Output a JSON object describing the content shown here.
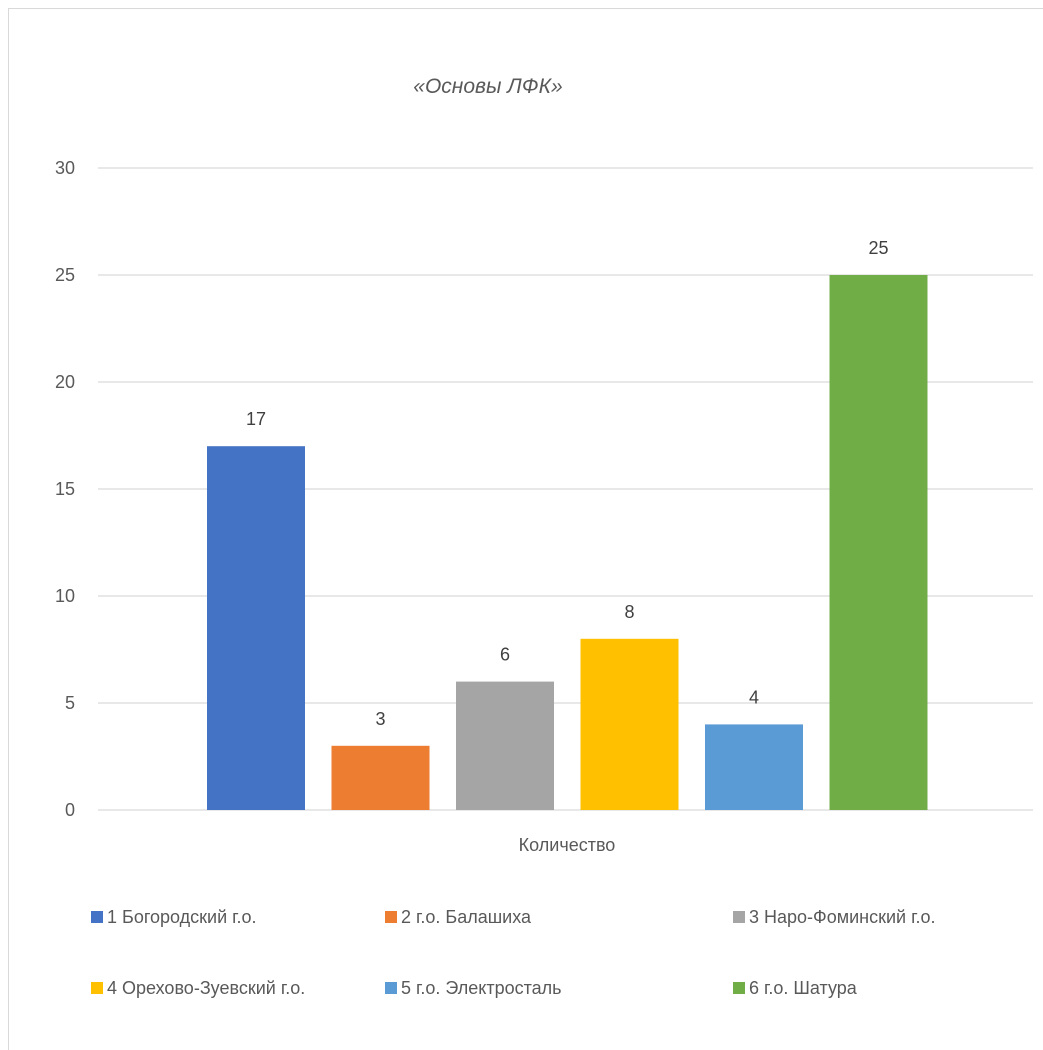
{
  "chart_data": {
    "type": "bar",
    "title": "«Основы ЛФК»",
    "xlabel": "Количество",
    "ylabel": "",
    "ylim": [
      0,
      30
    ],
    "yticks": [
      0,
      5,
      10,
      15,
      20,
      25,
      30
    ],
    "grid": true,
    "legend_position": "bottom",
    "categories": [
      "Количество"
    ],
    "series": [
      {
        "name": "1 Богородский г.о.",
        "values": [
          17
        ],
        "color": "#4472C4"
      },
      {
        "name": "2 г.о. Балашиха",
        "values": [
          3
        ],
        "color": "#ED7D31"
      },
      {
        "name": "3 Наро-Фоминский г.о.",
        "values": [
          6
        ],
        "color": "#A5A5A5"
      },
      {
        "name": "4 Орехово-Зуевский г.о.",
        "values": [
          8
        ],
        "color": "#FFC000"
      },
      {
        "name": "5 г.о. Электросталь",
        "values": [
          4
        ],
        "color": "#5B9BD5"
      },
      {
        "name": "6 г.о. Шатура",
        "values": [
          25
        ],
        "color": "#70AD47"
      }
    ]
  }
}
